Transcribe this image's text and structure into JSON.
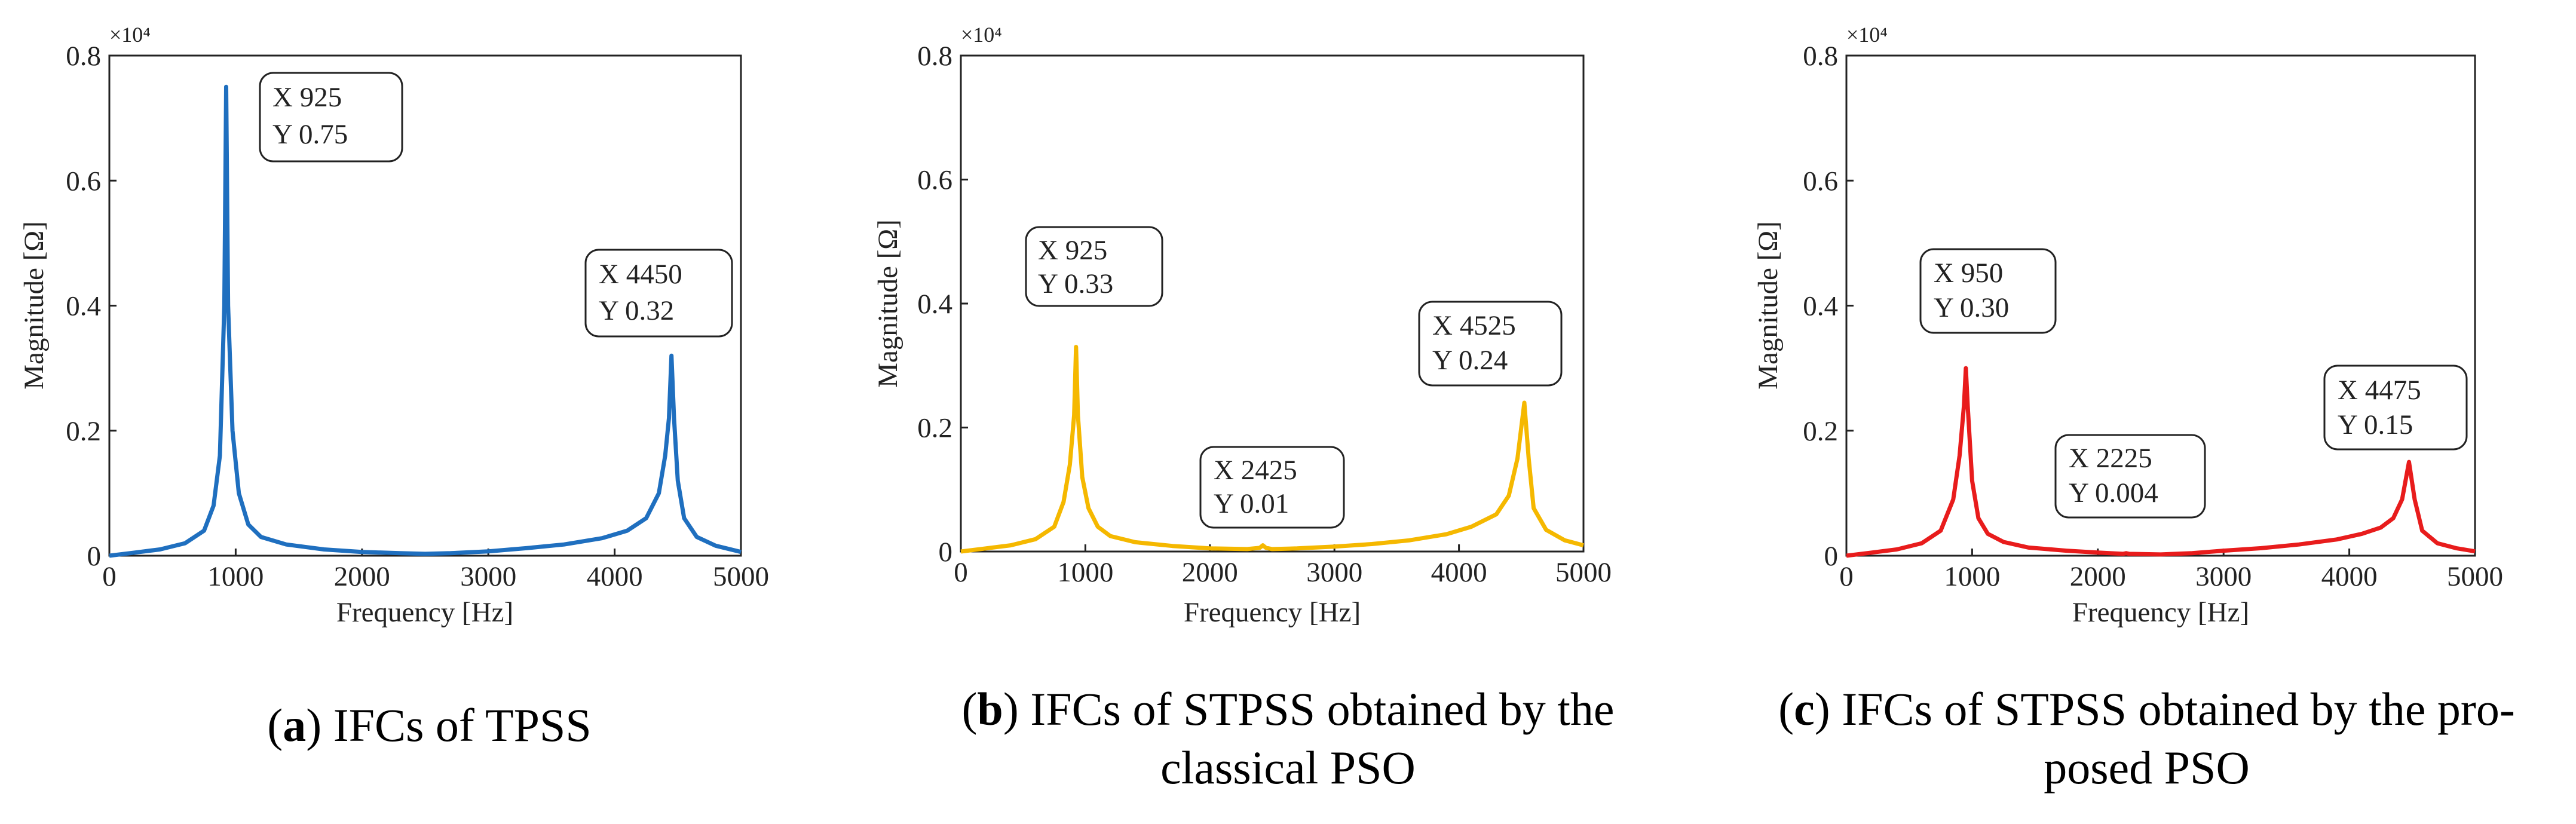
{
  "chart_data": [
    {
      "type": "line",
      "caption_letter": "a",
      "caption_text": "IFCs of TPSS",
      "xlabel": "Frequency  [Hz]",
      "ylabel": "Magnitude [Ω]",
      "exponent": "×10⁴",
      "xlim": [
        0,
        5000
      ],
      "ylim": [
        0,
        0.8
      ],
      "xticks": [
        "0",
        "1000",
        "2000",
        "3000",
        "4000",
        "5000"
      ],
      "yticks": [
        "0",
        "0.2",
        "0.4",
        "0.6",
        "0.8"
      ],
      "color": "#1f6fbf",
      "x": [
        0,
        200,
        400,
        600,
        750,
        825,
        875,
        910,
        925,
        940,
        975,
        1025,
        1100,
        1200,
        1400,
        1700,
        2000,
        2300,
        2500,
        2700,
        3000,
        3300,
        3600,
        3900,
        4100,
        4250,
        4350,
        4400,
        4430,
        4450,
        4470,
        4500,
        4550,
        4650,
        4800,
        5000
      ],
      "y": [
        0.0,
        0.005,
        0.01,
        0.02,
        0.04,
        0.08,
        0.16,
        0.4,
        0.75,
        0.4,
        0.2,
        0.1,
        0.05,
        0.03,
        0.018,
        0.01,
        0.006,
        0.004,
        0.003,
        0.004,
        0.007,
        0.012,
        0.018,
        0.028,
        0.04,
        0.06,
        0.1,
        0.16,
        0.22,
        0.32,
        0.22,
        0.12,
        0.06,
        0.03,
        0.016,
        0.006
      ],
      "annotations": [
        {
          "line1": "X 925",
          "line2": "Y 0.75"
        },
        {
          "line1": "X 4450",
          "line2": "Y 0.32"
        }
      ]
    },
    {
      "type": "line",
      "caption_letter": "b",
      "caption_text": "IFCs of STPSS obtained by the classical PSO",
      "caption_line1": "IFCs of STPSS obtained by the",
      "caption_line2": "classical PSO",
      "xlabel": "Frequency  [Hz]",
      "ylabel": "Magnitude [Ω]",
      "exponent": "×10⁴",
      "xlim": [
        0,
        5000
      ],
      "ylim": [
        0,
        0.8
      ],
      "xticks": [
        "0",
        "1000",
        "2000",
        "3000",
        "4000",
        "5000"
      ],
      "yticks": [
        "0",
        "0.2",
        "0.4",
        "0.6",
        "0.8"
      ],
      "color": "#f5b800",
      "x": [
        0,
        200,
        400,
        600,
        750,
        825,
        875,
        910,
        925,
        940,
        975,
        1025,
        1100,
        1200,
        1400,
        1700,
        2000,
        2300,
        2400,
        2425,
        2450,
        2500,
        2700,
        3000,
        3300,
        3600,
        3900,
        4100,
        4300,
        4400,
        4470,
        4525,
        4560,
        4600,
        4700,
        4850,
        5000
      ],
      "y": [
        0.0,
        0.005,
        0.01,
        0.02,
        0.04,
        0.08,
        0.14,
        0.22,
        0.33,
        0.22,
        0.12,
        0.07,
        0.04,
        0.025,
        0.015,
        0.009,
        0.005,
        0.004,
        0.006,
        0.01,
        0.006,
        0.004,
        0.005,
        0.008,
        0.012,
        0.018,
        0.028,
        0.04,
        0.06,
        0.09,
        0.15,
        0.24,
        0.15,
        0.07,
        0.035,
        0.018,
        0.01
      ],
      "annotations": [
        {
          "line1": "X 925",
          "line2": "Y 0.33"
        },
        {
          "line1": "X 2425",
          "line2": "Y 0.01"
        },
        {
          "line1": "X 4525",
          "line2": "Y 0.24"
        }
      ]
    },
    {
      "type": "line",
      "caption_letter": "c",
      "caption_text": "IFCs of STPSS obtained by the proposed PSO",
      "caption_line1": "IFCs of STPSS obtained by the pro-",
      "caption_line2": "posed PSO",
      "xlabel": "Frequency  [Hz]",
      "ylabel": "Magnitude [Ω]",
      "exponent": "×10⁴",
      "xlim": [
        0,
        5000
      ],
      "ylim": [
        0,
        0.8
      ],
      "xticks": [
        "0",
        "1000",
        "2000",
        "3000",
        "4000",
        "5000"
      ],
      "yticks": [
        "0",
        "0.2",
        "0.4",
        "0.6",
        "0.8"
      ],
      "color": "#e81c1c",
      "x": [
        0,
        200,
        400,
        600,
        750,
        850,
        900,
        935,
        950,
        965,
        1000,
        1050,
        1125,
        1250,
        1450,
        1750,
        2000,
        2200,
        2225,
        2250,
        2500,
        2750,
        3000,
        3300,
        3600,
        3900,
        4100,
        4250,
        4350,
        4420,
        4475,
        4520,
        4580,
        4700,
        4850,
        5000
      ],
      "y": [
        0.0,
        0.005,
        0.01,
        0.02,
        0.04,
        0.09,
        0.16,
        0.24,
        0.3,
        0.24,
        0.12,
        0.06,
        0.035,
        0.022,
        0.013,
        0.008,
        0.005,
        0.003,
        0.004,
        0.003,
        0.002,
        0.004,
        0.008,
        0.012,
        0.018,
        0.026,
        0.035,
        0.045,
        0.06,
        0.09,
        0.15,
        0.09,
        0.04,
        0.02,
        0.012,
        0.007
      ],
      "annotations": [
        {
          "line1": "X 950",
          "line2": "Y 0.30"
        },
        {
          "line1": "X 2225",
          "line2": "Y 0.004"
        },
        {
          "line1": "X 4475",
          "line2": "Y 0.15"
        }
      ]
    }
  ]
}
